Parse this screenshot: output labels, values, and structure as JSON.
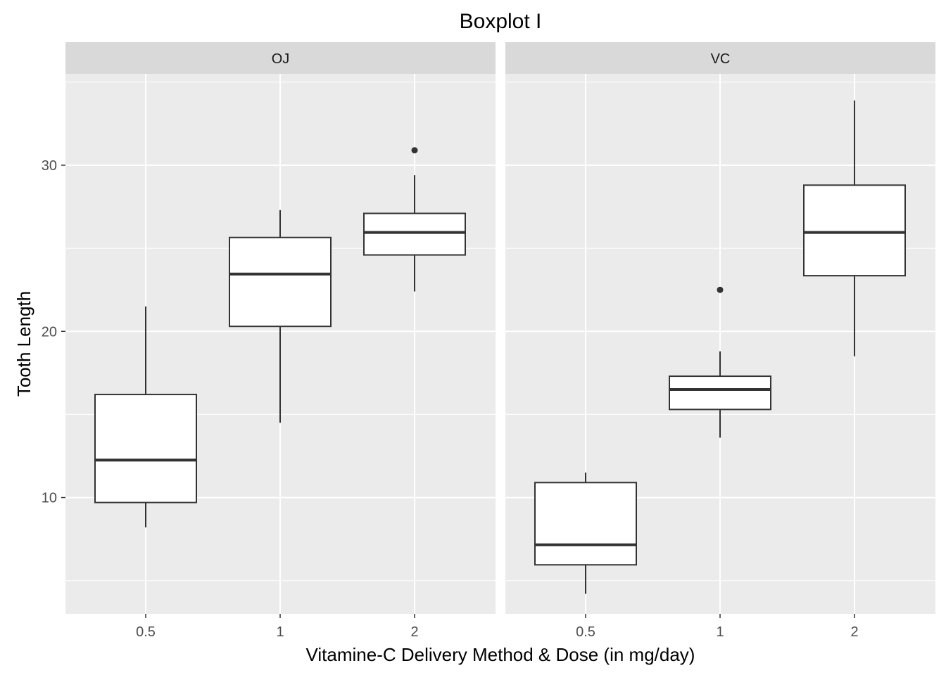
{
  "chart_data": {
    "type": "boxplot",
    "title": "Boxplot I",
    "xlabel": "Vitamine-C Delivery Method & Dose (in mg/day)",
    "ylabel": "Tooth Length",
    "ylim": [
      3,
      35.5
    ],
    "y_ticks": [
      10,
      20,
      30
    ],
    "categories": [
      "0.5",
      "1",
      "2"
    ],
    "grid": true,
    "colors": {
      "panel_bg": "#ebebeb",
      "strip_bg": "#d9d9d9",
      "grid": "#ffffff",
      "box_fill": "#ffffff",
      "box_stroke": "#333333"
    },
    "panels": [
      {
        "label": "OJ",
        "boxes": [
          {
            "x": "0.5",
            "whisker_low": 8.2,
            "q1": 9.7,
            "median": 12.25,
            "q3": 16.2,
            "whisker_high": 21.5,
            "outliers": []
          },
          {
            "x": "1",
            "whisker_low": 14.5,
            "q1": 20.3,
            "median": 23.45,
            "q3": 25.65,
            "whisker_high": 27.3,
            "outliers": []
          },
          {
            "x": "2",
            "whisker_low": 22.4,
            "q1": 24.6,
            "median": 25.95,
            "q3": 27.1,
            "whisker_high": 29.4,
            "outliers": [
              30.9
            ]
          }
        ]
      },
      {
        "label": "VC",
        "boxes": [
          {
            "x": "0.5",
            "whisker_low": 4.2,
            "q1": 5.95,
            "median": 7.15,
            "q3": 10.9,
            "whisker_high": 11.5,
            "outliers": []
          },
          {
            "x": "1",
            "whisker_low": 13.6,
            "q1": 15.3,
            "median": 16.5,
            "q3": 17.3,
            "whisker_high": 18.8,
            "outliers": [
              22.5
            ]
          },
          {
            "x": "2",
            "whisker_low": 18.5,
            "q1": 23.35,
            "median": 25.95,
            "q3": 28.8,
            "whisker_high": 33.9,
            "outliers": []
          }
        ]
      }
    ]
  }
}
